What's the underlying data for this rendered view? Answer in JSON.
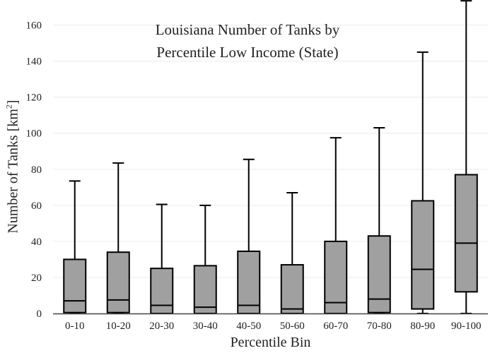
{
  "chart_data": {
    "type": "box",
    "title_lines": [
      "Louisiana Number of Tanks by",
      "Percentile Low Income (State)"
    ],
    "xlabel": "Percentile Bin",
    "ylabel_prefix": "Number of Tanks  [km",
    "ylabel_sup": "2",
    "ylabel_suffix": "]",
    "ylim": [
      0,
      170
    ],
    "yticks": [
      0,
      20,
      40,
      60,
      80,
      100,
      120,
      140,
      160
    ],
    "grid": true,
    "categories": [
      "0-10",
      "10-20",
      "20-30",
      "30-40",
      "40-50",
      "50-60",
      "60-70",
      "70-80",
      "80-90",
      "90-100"
    ],
    "boxes": [
      {
        "min": 0,
        "q1": 0.5,
        "median": 7,
        "q3": 30,
        "max": 73.5
      },
      {
        "min": 0,
        "q1": 0.5,
        "median": 7.5,
        "q3": 34,
        "max": 83.5
      },
      {
        "min": 0,
        "q1": 0,
        "median": 4.5,
        "q3": 25,
        "max": 60.5
      },
      {
        "min": 0,
        "q1": 0,
        "median": 3.5,
        "q3": 26.5,
        "max": 60
      },
      {
        "min": 0,
        "q1": 0,
        "median": 4.5,
        "q3": 34.5,
        "max": 85.5
      },
      {
        "min": 0,
        "q1": 0,
        "median": 2.5,
        "q3": 27,
        "max": 67
      },
      {
        "min": 0,
        "q1": 0,
        "median": 6,
        "q3": 40,
        "max": 97.5
      },
      {
        "min": 0,
        "q1": 0.5,
        "median": 8,
        "q3": 43,
        "max": 103
      },
      {
        "min": 0,
        "q1": 2.5,
        "median": 24.5,
        "q3": 62.5,
        "max": 145
      },
      {
        "min": 0,
        "q1": 12,
        "median": 39,
        "q3": 77,
        "max": 173.5
      }
    ],
    "colors": {
      "box_fill": "#a0a0a0",
      "stroke": "#000000",
      "grid": "#ececec",
      "axis": "#444444",
      "text": "#222222"
    }
  }
}
